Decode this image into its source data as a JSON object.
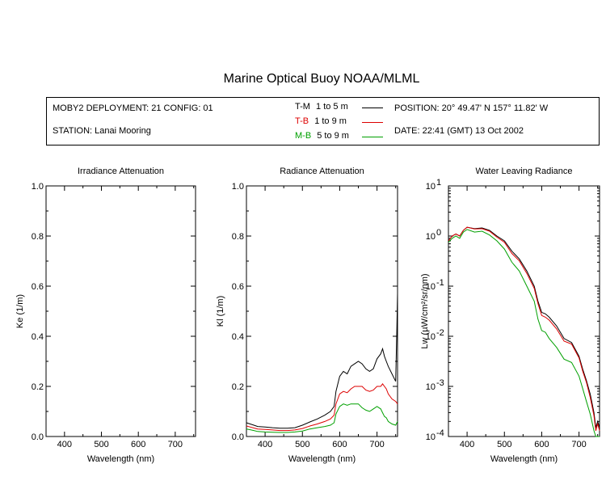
{
  "title": "Marine Optical Buoy NOAA/MLML",
  "info": {
    "deployment": "MOBY2 DEPLOYMENT: 21 CONFIG: 01",
    "station": "STATION: Lanai Mooring",
    "position": "POSITION: 20° 49.47' N   157° 11.82' W",
    "date": "DATE: 22:41 (GMT) 13 Oct 2002",
    "legend": [
      {
        "code": "T-M",
        "depth": "1 to 5  m",
        "color": "#000000"
      },
      {
        "code": "T-B",
        "depth": "1 to 9  m",
        "color": "#dd0000"
      },
      {
        "code": "M-B",
        "depth": "5 to 9  m",
        "color": "#00a000"
      }
    ]
  },
  "chart_data": [
    {
      "type": "line",
      "title": "Irradiance Attenuation",
      "xlabel": "Wavelength (nm)",
      "ylabel": "Ke  (1/m)",
      "xlim": [
        350,
        755
      ],
      "ylim": [
        0,
        1.0
      ],
      "xticks": [
        400,
        500,
        600,
        700
      ],
      "yticks": [
        0.0,
        0.2,
        0.4,
        0.6,
        0.8,
        1.0
      ],
      "ytick_labels": [
        "0.0",
        "0.2",
        "0.4",
        "0.6",
        "0.8",
        "1.0"
      ],
      "series": []
    },
    {
      "type": "line",
      "title": "Radiance Attenuation",
      "xlabel": "Wavelength (nm)",
      "ylabel": "Kl  (1/m)",
      "xlim": [
        350,
        755
      ],
      "ylim": [
        0,
        1.0
      ],
      "xticks": [
        400,
        500,
        600,
        700
      ],
      "yticks": [
        0.0,
        0.2,
        0.4,
        0.6,
        0.8,
        1.0
      ],
      "ytick_labels": [
        "0.0",
        "0.2",
        "0.4",
        "0.6",
        "0.8",
        "1.0"
      ],
      "series": [
        {
          "name": "T-M",
          "color": "#000000",
          "x": [
            350,
            360,
            370,
            380,
            400,
            420,
            440,
            460,
            480,
            500,
            520,
            540,
            560,
            575,
            585,
            590,
            600,
            610,
            620,
            630,
            640,
            650,
            660,
            670,
            680,
            690,
            700,
            710,
            715,
            720,
            725,
            730,
            740,
            750,
            753,
            755
          ],
          "y": [
            0.055,
            0.05,
            0.045,
            0.04,
            0.038,
            0.035,
            0.033,
            0.033,
            0.035,
            0.045,
            0.058,
            0.07,
            0.085,
            0.1,
            0.12,
            0.18,
            0.24,
            0.26,
            0.25,
            0.28,
            0.29,
            0.3,
            0.29,
            0.27,
            0.26,
            0.27,
            0.31,
            0.33,
            0.35,
            0.32,
            0.3,
            0.28,
            0.25,
            0.22,
            0.42,
            0.57
          ]
        },
        {
          "name": "T-B",
          "color": "#dd0000",
          "x": [
            350,
            360,
            370,
            380,
            400,
            420,
            440,
            460,
            480,
            500,
            520,
            540,
            560,
            575,
            585,
            590,
            600,
            610,
            620,
            630,
            640,
            650,
            660,
            670,
            680,
            690,
            700,
            710,
            715,
            720,
            725,
            730,
            740,
            750,
            755
          ],
          "y": [
            0.042,
            0.038,
            0.034,
            0.03,
            0.028,
            0.026,
            0.024,
            0.024,
            0.026,
            0.032,
            0.042,
            0.05,
            0.06,
            0.07,
            0.085,
            0.13,
            0.17,
            0.18,
            0.175,
            0.19,
            0.2,
            0.2,
            0.2,
            0.185,
            0.18,
            0.185,
            0.2,
            0.2,
            0.21,
            0.2,
            0.19,
            0.17,
            0.15,
            0.14,
            0.13
          ]
        },
        {
          "name": "M-B",
          "color": "#00a000",
          "x": [
            350,
            360,
            370,
            380,
            400,
            420,
            440,
            460,
            480,
            500,
            520,
            540,
            560,
            575,
            585,
            590,
            600,
            610,
            620,
            630,
            640,
            650,
            660,
            670,
            680,
            690,
            700,
            710,
            715,
            720,
            725,
            730,
            740,
            750,
            755
          ],
          "y": [
            0.03,
            0.027,
            0.024,
            0.02,
            0.018,
            0.017,
            0.016,
            0.016,
            0.018,
            0.022,
            0.03,
            0.035,
            0.04,
            0.045,
            0.055,
            0.09,
            0.12,
            0.13,
            0.125,
            0.13,
            0.13,
            0.13,
            0.115,
            0.105,
            0.1,
            0.11,
            0.12,
            0.11,
            0.095,
            0.08,
            0.075,
            0.06,
            0.05,
            0.045,
            0.06
          ]
        }
      ]
    },
    {
      "type": "line",
      "title": "Water Leaving Radiance",
      "xlabel": "Wavelength (nm)",
      "ylabel": "Lw  (µW/cm²/sr/nm)",
      "xlim": [
        350,
        755
      ],
      "ylim": [
        0.0001,
        10
      ],
      "yscale": "log",
      "xticks": [
        400,
        500,
        600,
        700
      ],
      "yticks": [
        0.0001,
        0.001,
        0.01,
        0.1,
        1,
        10
      ],
      "ytick_labels": [
        [
          "10",
          "-4"
        ],
        [
          "10",
          "-3"
        ],
        [
          "10",
          "-2"
        ],
        [
          "10",
          "-1"
        ],
        [
          "10",
          "0"
        ],
        [
          "10",
          "1"
        ]
      ],
      "series": [
        {
          "name": "T-M",
          "color": "#000000",
          "x": [
            350,
            360,
            370,
            380,
            390,
            400,
            420,
            440,
            460,
            480,
            500,
            520,
            540,
            560,
            580,
            590,
            600,
            610,
            620,
            640,
            660,
            680,
            700,
            710,
            720,
            730,
            740,
            745,
            750,
            755
          ],
          "y": [
            0.8,
            1.0,
            1.1,
            1.0,
            1.3,
            1.5,
            1.4,
            1.45,
            1.3,
            1.0,
            0.8,
            0.5,
            0.35,
            0.2,
            0.1,
            0.05,
            0.03,
            0.028,
            0.024,
            0.016,
            0.009,
            0.0075,
            0.004,
            0.0022,
            0.0013,
            0.0007,
            0.0003,
            0.00015,
            0.0002,
            0.00015
          ]
        },
        {
          "name": "T-B",
          "color": "#dd0000",
          "x": [
            350,
            360,
            370,
            380,
            390,
            400,
            420,
            440,
            460,
            480,
            500,
            520,
            540,
            560,
            580,
            590,
            600,
            610,
            620,
            640,
            660,
            680,
            700,
            710,
            720,
            730,
            740,
            745,
            750,
            755
          ],
          "y": [
            0.8,
            1.0,
            1.1,
            1.0,
            1.3,
            1.5,
            1.38,
            1.4,
            1.25,
            0.95,
            0.75,
            0.45,
            0.32,
            0.18,
            0.09,
            0.045,
            0.026,
            0.024,
            0.021,
            0.014,
            0.008,
            0.007,
            0.0037,
            0.002,
            0.0012,
            0.0006,
            0.00026,
            0.00013,
            0.00018,
            0.00013
          ]
        },
        {
          "name": "M-B",
          "color": "#00a000",
          "x": [
            350,
            360,
            370,
            380,
            390,
            400,
            420,
            440,
            460,
            480,
            500,
            520,
            540,
            560,
            580,
            590,
            600,
            610,
            620,
            640,
            660,
            680,
            700,
            710,
            720,
            730,
            740,
            745,
            750,
            755
          ],
          "y": [
            0.75,
            0.9,
            1.0,
            0.9,
            1.2,
            1.35,
            1.2,
            1.25,
            1.05,
            0.8,
            0.55,
            0.3,
            0.2,
            0.1,
            0.05,
            0.022,
            0.013,
            0.012,
            0.009,
            0.006,
            0.0035,
            0.003,
            0.0016,
            0.0009,
            0.0005,
            0.00028,
            0.00013,
            0.0001,
            0.0001,
            0.0001
          ]
        }
      ]
    }
  ]
}
